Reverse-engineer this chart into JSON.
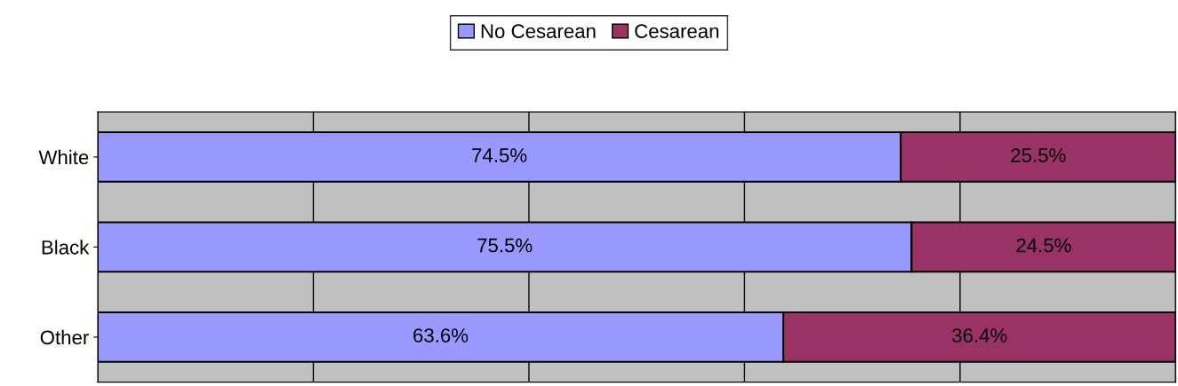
{
  "chart_data": {
    "type": "bar",
    "orientation": "horizontal",
    "stacked": true,
    "categories": [
      "White",
      "Black",
      "Other"
    ],
    "series": [
      {
        "name": "No Cesarean",
        "color": "#9999ff",
        "values": [
          74.5,
          75.5,
          63.6
        ],
        "value_labels": [
          "74.5%",
          "75.5%",
          "63.6%"
        ]
      },
      {
        "name": "Cesarean",
        "color": "#993366",
        "values": [
          25.5,
          24.5,
          36.4
        ],
        "value_labels": [
          "25.5%",
          "24.5%",
          "36.4%"
        ]
      }
    ],
    "xlim": [
      0,
      100
    ],
    "xticks": [
      {
        "value": 0,
        "label": null
      },
      {
        "value": 20,
        "label": null
      },
      {
        "value": 40,
        "label": null
      },
      {
        "value": 60,
        "label": null
      },
      {
        "value": 80,
        "label": null
      },
      {
        "value": 100,
        "label": null
      }
    ],
    "tick_labels": "y",
    "grid": "x",
    "legend": "top"
  }
}
